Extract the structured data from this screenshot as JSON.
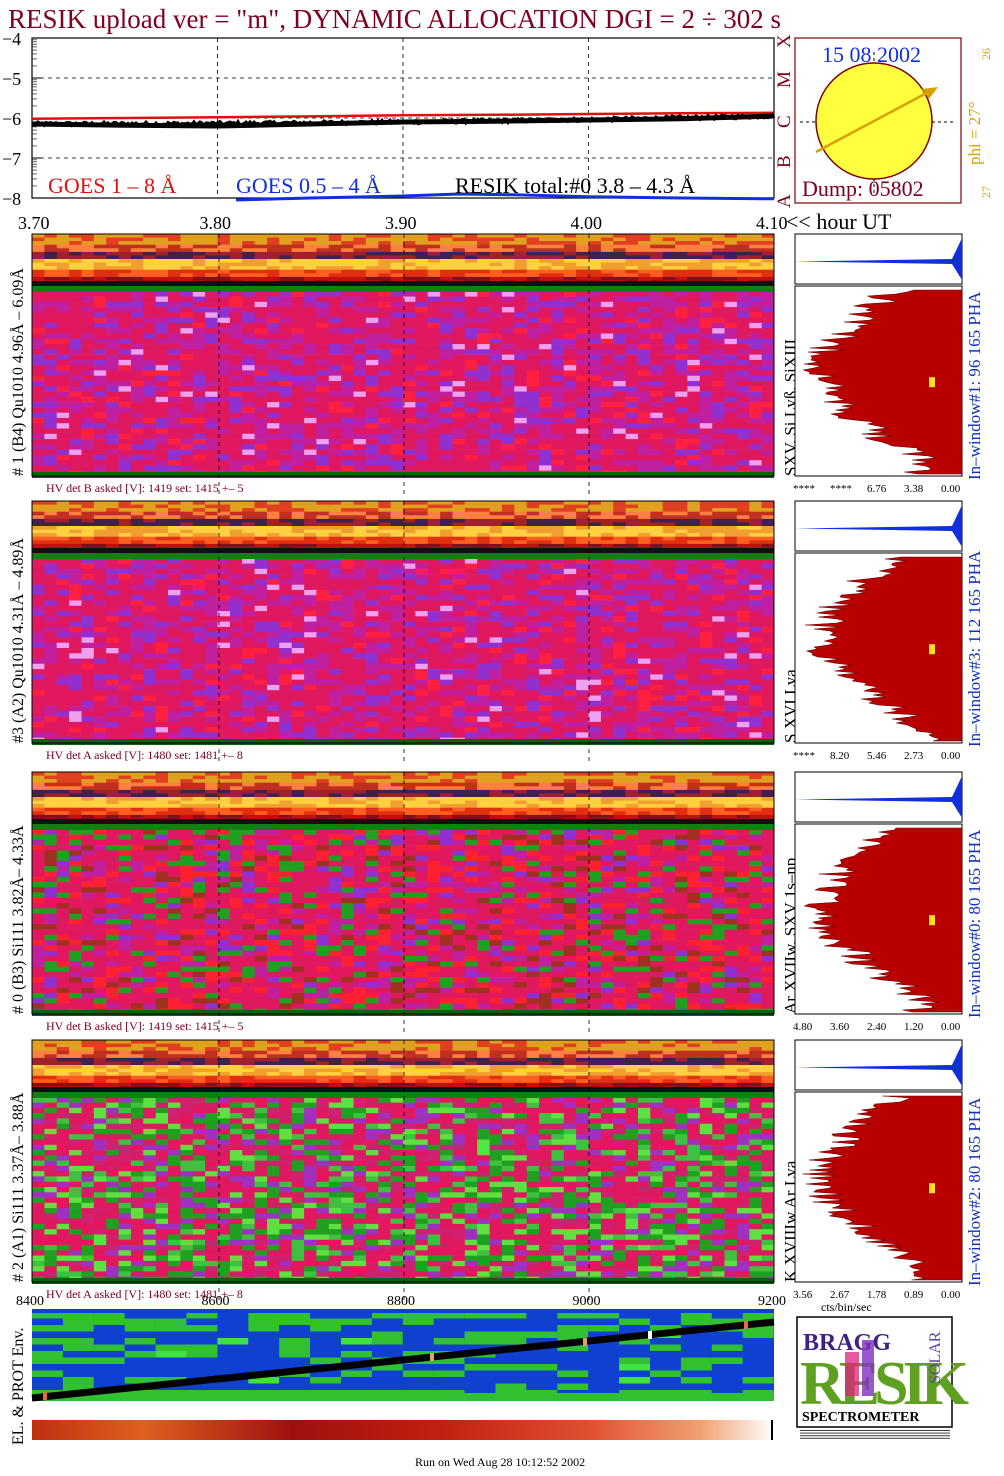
{
  "header": {
    "title": "RESIK upload ver = \"m\", DYNAMIC ALLOCATION  DGI =   2 ÷ 302 s"
  },
  "goes": {
    "goes_long_label": "GOES 1 – 8 Å",
    "goes_short_label": "GOES 0.5 – 4 Å",
    "resik_total_label": "RESIK total:#0  3.8 – 4.3 Å",
    "y_tick_labels": [
      "−4",
      "−5",
      "−6",
      "−7",
      "−8"
    ],
    "class_letters": [
      "X",
      "M",
      "C",
      "B",
      "A"
    ],
    "x_tick_labels": [
      "3.70",
      "3.80",
      "3.90",
      "4.00",
      "4.10"
    ],
    "x_unit": "<< hour UT",
    "colors": {
      "goes_long": "#e01010",
      "goes_short": "#1030e0",
      "resik": "#000000"
    }
  },
  "sun_panel": {
    "date": "15 08 2002",
    "phi_label": "phi = 27°",
    "phi_top": "26",
    "phi_bottom": "27",
    "dump": "Dump: 05802",
    "colors": {
      "sun": "#ffff40",
      "arrow": "#d8a000",
      "frame": "#800000"
    }
  },
  "chart_data": {
    "type": "line",
    "title": "RESIK upload ver = \"m\", DYNAMIC ALLOCATION  DGI =   2 ÷ 302 s",
    "xlabel": "<< hour UT",
    "ylabel": "",
    "xlim": [
      3.7,
      4.1
    ],
    "ylim": [
      -8,
      -4
    ],
    "series": [
      {
        "name": "GOES 1 – 8 Å",
        "x": [
          3.7,
          3.75,
          3.8,
          3.85,
          3.9,
          3.95,
          4.0,
          4.05,
          4.1
        ],
        "y": [
          -6.02,
          -6.0,
          -5.98,
          -5.96,
          -5.93,
          -5.92,
          -5.9,
          -5.88,
          -5.87
        ]
      },
      {
        "name": "RESIK total:#0  3.8 – 4.3 Å",
        "x": [
          3.7,
          3.75,
          3.8,
          3.85,
          3.9,
          3.95,
          4.0,
          4.05,
          4.1
        ],
        "y": [
          -6.15,
          -6.18,
          -6.2,
          -6.15,
          -6.1,
          -6.08,
          -6.05,
          -6.02,
          -5.95
        ]
      },
      {
        "name": "GOES 0.5 – 4 Å",
        "x": [
          3.81,
          3.85,
          3.9,
          3.93,
          3.96,
          4.0,
          4.05,
          4.1
        ],
        "y": [
          -8.05,
          -8.0,
          -7.95,
          -7.9,
          -7.92,
          -7.97,
          -8.0,
          -8.02
        ]
      }
    ]
  },
  "channels": [
    {
      "left_label": "# 1 (B4) Qu1010 4.96Å – 6.09Å",
      "hv_label": "HV det B asked [V]:  1419 set:  1415  +–    5",
      "right_label": "SXV, Si Lyß, SiXIII",
      "window_label": "In–window#1:  96 165  PHA",
      "pha_ticks": [
        "****",
        "****",
        "6.76",
        "3.38",
        "0.00"
      ],
      "palette": "magenta"
    },
    {
      "left_label": "#3 (A2) Qu1010  4.31Å – 4.89Å",
      "hv_label": "HV det A asked [V]:  1480 set:  1481  +–    8",
      "right_label": "S XVI Lya",
      "window_label": "In–window#3:  112 165  PHA",
      "pha_ticks": [
        "****",
        "8.20",
        "5.46",
        "2.73",
        "0.00"
      ],
      "palette": "magenta"
    },
    {
      "left_label": "# 0 (B3) Si111  3.82Å– 4.33Å",
      "hv_label": "HV det B asked [V]:  1419 set:  1415  +–    5",
      "right_label": "Ar XVIIw,  SXV 1s–np",
      "window_label": "In–window#0:  80 165  PHA",
      "pha_ticks": [
        "4.80",
        "3.60",
        "2.40",
        "1.20",
        "0.00"
      ],
      "palette": "mixed"
    },
    {
      "left_label": "# 2 (A1) Si111  3.37Å– 3.88Å",
      "hv_label": "HV det A asked [V]:  1480 set:  1481  +–    8",
      "right_label": "K XVIIIw  Ar Lya",
      "window_label": "In–window#2:  80 165  PHA",
      "pha_ticks": [
        "3.56",
        "2.67",
        "1.78",
        "0.89",
        "0.00"
      ],
      "palette": "green"
    }
  ],
  "pha_axis_unit": "cts/bin/sec",
  "orbit": {
    "x_tick_labels": [
      "8400",
      "8600",
      "8800",
      "9000",
      "9200"
    ],
    "left_label": "EL. & PROT Env."
  },
  "logo": {
    "bragg": "BRAGG",
    "resik": "RESIK",
    "solar": "SOLAR",
    "spectrometer": "SPECTROMETER"
  },
  "footer": {
    "run_text": "Run on Wed Aug 28 10:12:52 2002"
  }
}
